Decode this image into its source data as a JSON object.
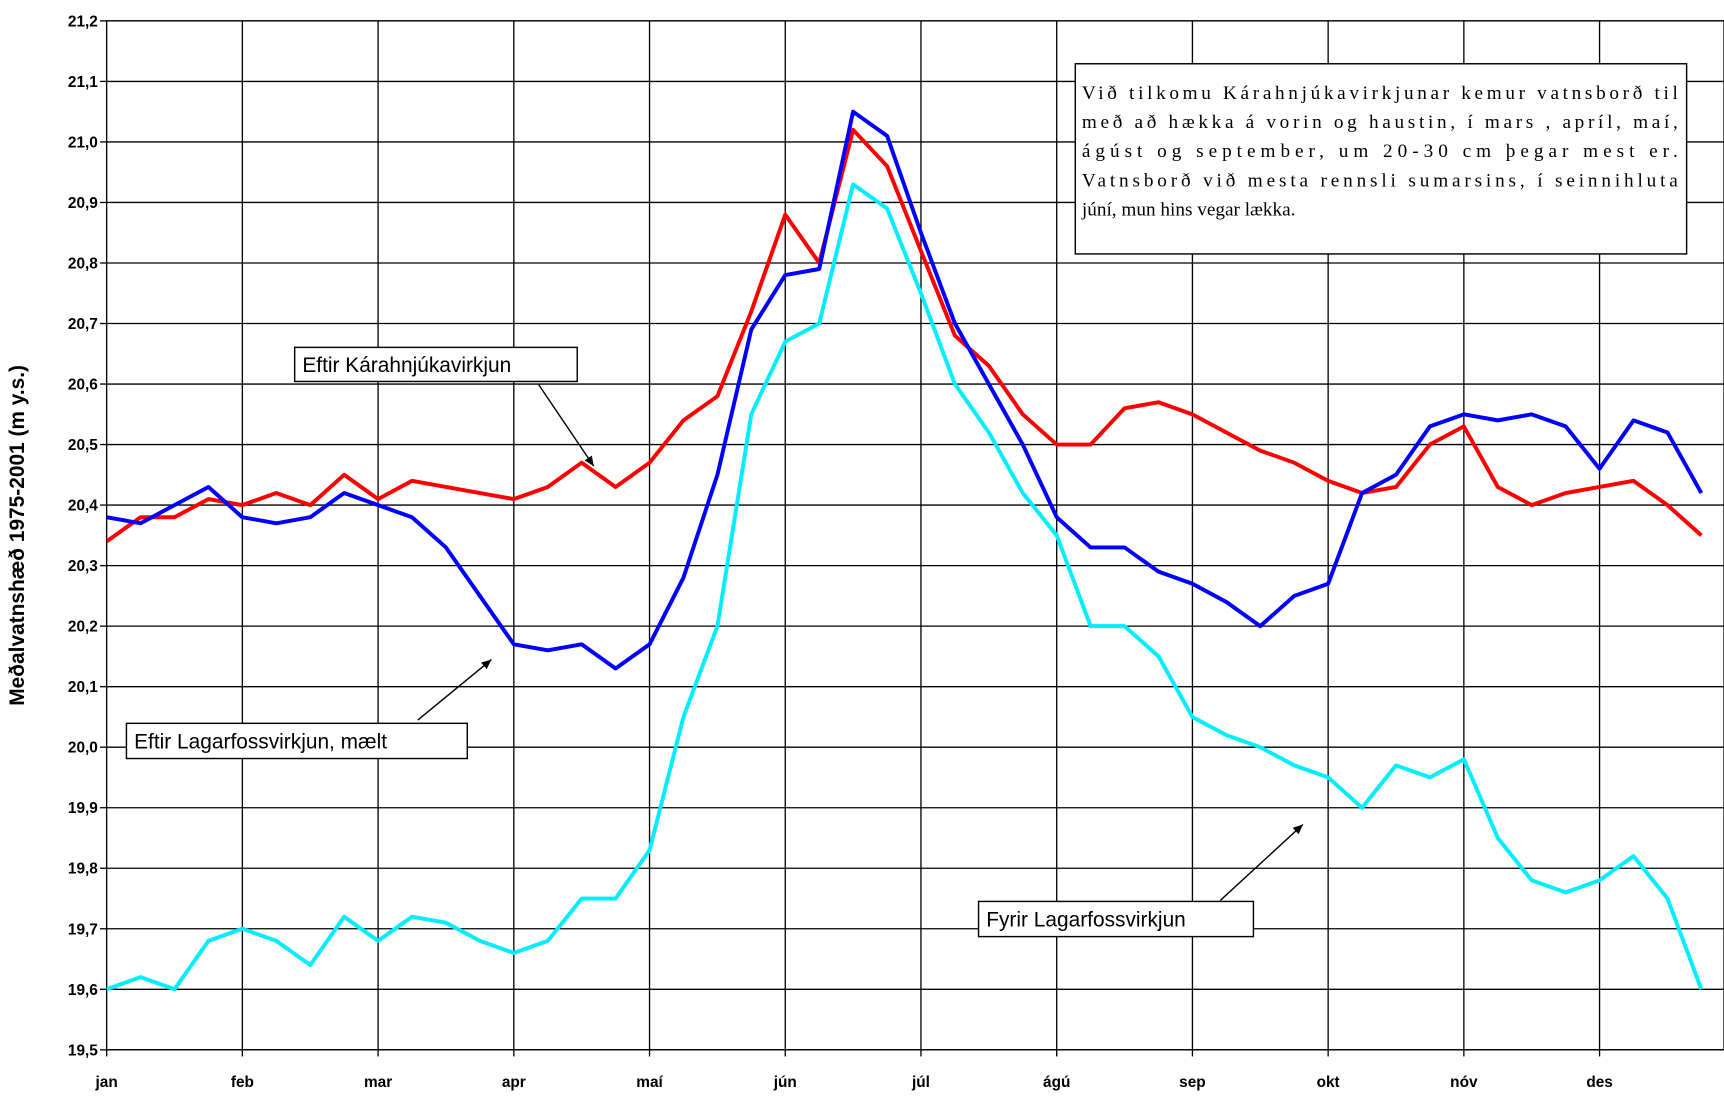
{
  "chart_data": {
    "type": "line",
    "y_label": "Meðalvatnshæð 1975-2001 (m y.s.)",
    "note": [
      "Við tilkomu Kárahnjúkavirkjunar kemur vatnsborð til",
      "með að hækka á vorin og haustin, í mars , apríl, maí,",
      "ágúst og september, um 20-30 cm þegar mest er.",
      "Vatnsborð við mesta rennsli sumarsins, í seinnihluta",
      "júní, mun hins vegar lækka."
    ],
    "categories": [
      "jan",
      null,
      null,
      null,
      "feb",
      null,
      null,
      null,
      "mar",
      null,
      null,
      null,
      "apr",
      null,
      null,
      null,
      "maí",
      null,
      null,
      null,
      "jún",
      null,
      null,
      null,
      "júl",
      null,
      null,
      null,
      "ágú",
      null,
      null,
      null,
      "sep",
      null,
      null,
      null,
      "okt",
      null,
      null,
      null,
      "nóv",
      null,
      null,
      null,
      "des",
      null,
      null,
      null
    ],
    "series": [
      {
        "name": "Eftir Kárahnjúkavirkjun",
        "color": "#ff0000",
        "values": [
          20.34,
          20.38,
          20.38,
          20.41,
          20.4,
          20.42,
          20.4,
          20.45,
          20.41,
          20.44,
          20.43,
          20.42,
          20.41,
          20.43,
          20.47,
          20.43,
          20.47,
          20.54,
          20.58,
          20.72,
          20.88,
          20.8,
          21.02,
          20.96,
          20.82,
          20.68,
          20.63,
          20.55,
          20.5,
          20.5,
          20.56,
          20.57,
          20.55,
          20.52,
          20.49,
          20.47,
          20.44,
          20.42,
          20.43,
          20.5,
          20.53,
          20.43,
          20.4,
          20.42,
          20.43,
          20.44,
          20.4,
          20.35
        ]
      },
      {
        "name": "Eftir Lagarfossvirkjun, mælt",
        "color": "#0000ff",
        "values": [
          20.38,
          20.37,
          20.4,
          20.43,
          20.38,
          20.37,
          20.38,
          20.42,
          20.4,
          20.38,
          20.33,
          20.25,
          20.17,
          20.16,
          20.17,
          20.13,
          20.17,
          20.28,
          20.45,
          20.69,
          20.78,
          20.79,
          21.05,
          21.01,
          20.85,
          20.7,
          20.6,
          20.5,
          20.38,
          20.33,
          20.33,
          20.29,
          20.27,
          20.24,
          20.2,
          20.25,
          20.27,
          20.42,
          20.45,
          20.53,
          20.55,
          20.54,
          20.55,
          20.53,
          20.46,
          20.54,
          20.52,
          20.42
        ]
      },
      {
        "name": "Fyrir Lagarfossvirkjun",
        "color": "#00eeff",
        "values": [
          19.6,
          19.62,
          19.6,
          19.68,
          19.7,
          19.68,
          19.64,
          19.72,
          19.68,
          19.72,
          19.71,
          19.68,
          19.66,
          19.68,
          19.75,
          19.75,
          19.83,
          20.05,
          20.2,
          20.55,
          20.67,
          20.7,
          20.93,
          20.89,
          20.75,
          20.6,
          20.52,
          20.42,
          20.35,
          20.2,
          20.2,
          20.15,
          20.05,
          20.02,
          20.0,
          19.97,
          19.95,
          19.9,
          19.97,
          19.95,
          19.98,
          19.85,
          19.78,
          19.76,
          19.78,
          19.82,
          19.75,
          19.6
        ]
      }
    ],
    "ylim": [
      19.5,
      21.2
    ],
    "yticks": [
      {
        "value": 19.5,
        "label": "19,5"
      },
      {
        "value": 19.6,
        "label": "19,6"
      },
      {
        "value": 19.7,
        "label": "19,7"
      },
      {
        "value": 19.8,
        "label": "19,8"
      },
      {
        "value": 19.9,
        "label": "19,9"
      },
      {
        "value": 20.0,
        "label": "20,0"
      },
      {
        "value": 20.1,
        "label": "20,1"
      },
      {
        "value": 20.2,
        "label": "20,2"
      },
      {
        "value": 20.3,
        "label": "20,3"
      },
      {
        "value": 20.4,
        "label": "20,4"
      },
      {
        "value": 20.5,
        "label": "20,5"
      },
      {
        "value": 20.6,
        "label": "20,6"
      },
      {
        "value": 20.7,
        "label": "20,7"
      },
      {
        "value": 20.8,
        "label": "20,8"
      },
      {
        "value": 20.9,
        "label": "20,9"
      },
      {
        "value": 21.0,
        "label": "21,0"
      },
      {
        "value": 21.1,
        "label": "21,1"
      },
      {
        "value": 21.2,
        "label": "21,2"
      }
    ],
    "grid": true
  }
}
